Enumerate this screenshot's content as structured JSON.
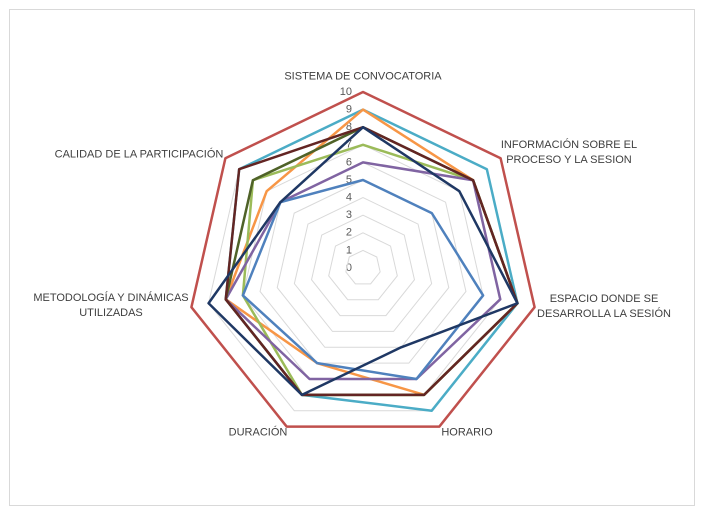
{
  "chart_data": {
    "type": "radar",
    "categories": [
      "SISTEMA DE CONVOCATORIA",
      "INFORMACIÓN SOBRE EL PROCESO Y LA SESION",
      "ESPACIO DONDE SE DESARROLLA LA SESIÓN",
      "HORARIO",
      "DURACIÓN",
      "METODOLOGÍA Y DINÁMICAS UTILIZADAS",
      "CALIDAD DE LA PARTICIPACIÓN"
    ],
    "rlim": [
      0,
      10
    ],
    "rticks": [
      0,
      1,
      2,
      3,
      4,
      5,
      6,
      7,
      8,
      9,
      10
    ],
    "grid": true,
    "series": [
      {
        "color": "#c0504d",
        "values": [
          10,
          10,
          10,
          10,
          10,
          10,
          10
        ]
      },
      {
        "color": "#4bacc6",
        "values": [
          9,
          9,
          9,
          9,
          8,
          8,
          9
        ]
      },
      {
        "color": "#f79646",
        "values": [
          9,
          8,
          9,
          8,
          6,
          8,
          7
        ]
      },
      {
        "color": "#9bbb59",
        "values": [
          7,
          8,
          9,
          8,
          8,
          7,
          8
        ]
      },
      {
        "color": "#8064a2",
        "values": [
          6,
          8,
          8,
          7,
          7,
          8,
          6
        ]
      },
      {
        "color": "#4f81bd",
        "values": [
          5,
          5,
          7,
          7,
          6,
          7,
          6
        ]
      },
      {
        "color": "#4f6228",
        "values": [
          8,
          8,
          9,
          8,
          8,
          8,
          8
        ]
      },
      {
        "color": "#632523",
        "values": [
          8,
          8,
          9,
          8,
          8,
          8,
          9
        ]
      },
      {
        "color": "#1f3864",
        "values": [
          8,
          7,
          9,
          5,
          8,
          9,
          6
        ]
      }
    ]
  }
}
